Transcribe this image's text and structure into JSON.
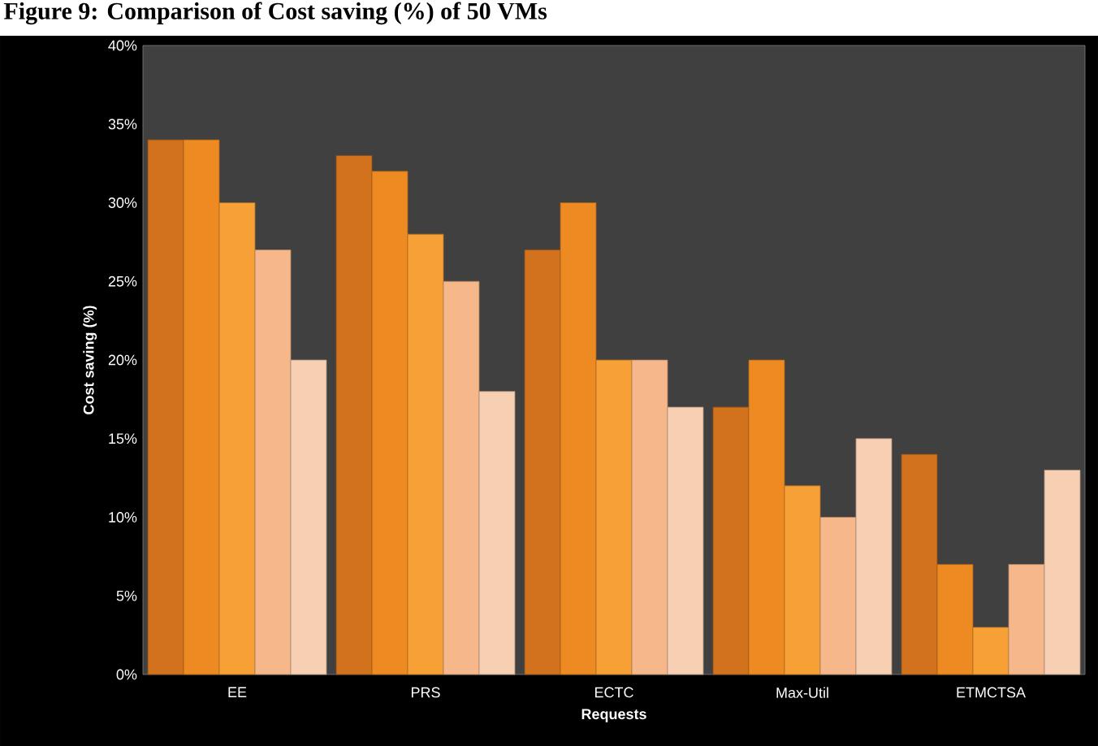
{
  "chart_data": {
    "type": "bar",
    "title": "Figure 9: Comparison of Cost saving (%) of 50 VMs",
    "xlabel": "Requests",
    "ylabel": "Cost saving (%)",
    "categories": [
      "EE",
      "PRS",
      "ECTC",
      "Max-Util",
      "ETMCTSA"
    ],
    "series": [
      {
        "color": "#d2721c",
        "values": [
          34,
          33,
          27,
          17,
          14
        ]
      },
      {
        "color": "#ee8a22",
        "values": [
          34,
          32,
          30,
          20,
          7
        ]
      },
      {
        "color": "#f7a035",
        "values": [
          30,
          28,
          20,
          12,
          3
        ]
      },
      {
        "color": "#f6b88a",
        "values": [
          27,
          25,
          20,
          10,
          7
        ]
      },
      {
        "color": "#f7cfb2",
        "values": [
          20,
          18,
          17,
          15,
          13
        ]
      }
    ],
    "ylim": [
      0,
      40
    ],
    "yticks": [
      {
        "value": 0,
        "label": "0%"
      },
      {
        "value": 5,
        "label": "5%"
      },
      {
        "value": 10,
        "label": "10%"
      },
      {
        "value": 15,
        "label": "15%"
      },
      {
        "value": 20,
        "label": "20%"
      },
      {
        "value": 25,
        "label": "25%"
      },
      {
        "value": 30,
        "label": "30%"
      },
      {
        "value": 35,
        "label": "35%"
      },
      {
        "value": 40,
        "label": "40%"
      }
    ],
    "grid": false
  }
}
